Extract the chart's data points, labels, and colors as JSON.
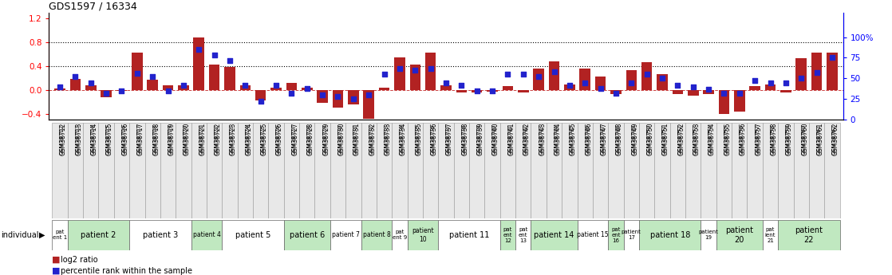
{
  "title": "GDS1597 / 16334",
  "samples": [
    "GSM38712",
    "GSM38713",
    "GSM38714",
    "GSM38715",
    "GSM38716",
    "GSM38717",
    "GSM38718",
    "GSM38719",
    "GSM38720",
    "GSM38721",
    "GSM38722",
    "GSM38723",
    "GSM38724",
    "GSM38725",
    "GSM38726",
    "GSM38727",
    "GSM38728",
    "GSM38729",
    "GSM38730",
    "GSM38731",
    "GSM38732",
    "GSM38733",
    "GSM38734",
    "GSM38735",
    "GSM38736",
    "GSM38737",
    "GSM38738",
    "GSM38739",
    "GSM38740",
    "GSM38741",
    "GSM38742",
    "GSM38743",
    "GSM38744",
    "GSM38745",
    "GSM38746",
    "GSM38747",
    "GSM38748",
    "GSM38749",
    "GSM38750",
    "GSM38751",
    "GSM38752",
    "GSM38753",
    "GSM38754",
    "GSM38755",
    "GSM38756",
    "GSM38757",
    "GSM38758",
    "GSM38759",
    "GSM38760",
    "GSM38761",
    "GSM38762"
  ],
  "log2_ratio": [
    0.02,
    0.18,
    0.08,
    -0.12,
    -0.02,
    0.62,
    0.17,
    0.07,
    0.08,
    0.88,
    0.42,
    0.38,
    0.07,
    -0.18,
    0.04,
    0.12,
    0.03,
    -0.22,
    -0.3,
    -0.25,
    -0.48,
    0.04,
    0.55,
    0.43,
    0.62,
    0.08,
    -0.04,
    -0.05,
    -0.03,
    0.06,
    -0.04,
    0.36,
    0.48,
    0.09,
    0.36,
    0.23,
    -0.07,
    0.33,
    0.46,
    0.26,
    -0.07,
    -0.1,
    -0.07,
    -0.4,
    -0.36,
    0.06,
    0.09,
    -0.04,
    0.53,
    0.63,
    0.63
  ],
  "percentile": [
    40,
    52,
    45,
    32,
    35,
    56,
    52,
    35,
    42,
    85,
    78,
    72,
    42,
    22,
    42,
    32,
    38,
    30,
    28,
    25,
    30,
    55,
    62,
    60,
    62,
    45,
    42,
    35,
    35,
    55,
    55,
    52,
    58,
    42,
    45,
    38,
    32,
    45,
    55,
    50,
    42,
    40,
    37,
    32,
    32,
    47,
    45,
    45,
    50,
    57,
    75
  ],
  "patients": [
    {
      "label": "pat\nent 1",
      "start": 0,
      "end": 1,
      "color": "white"
    },
    {
      "label": "patient 2",
      "start": 1,
      "end": 5,
      "color": "#c0e8c0"
    },
    {
      "label": "patient 3",
      "start": 5,
      "end": 9,
      "color": "white"
    },
    {
      "label": "patient 4",
      "start": 9,
      "end": 11,
      "color": "#c0e8c0"
    },
    {
      "label": "patient 5",
      "start": 11,
      "end": 15,
      "color": "white"
    },
    {
      "label": "patient 6",
      "start": 15,
      "end": 18,
      "color": "#c0e8c0"
    },
    {
      "label": "patient 7",
      "start": 18,
      "end": 20,
      "color": "white"
    },
    {
      "label": "patient 8",
      "start": 20,
      "end": 22,
      "color": "#c0e8c0"
    },
    {
      "label": "pat\nent 9",
      "start": 22,
      "end": 23,
      "color": "white"
    },
    {
      "label": "patient\n10",
      "start": 23,
      "end": 25,
      "color": "#c0e8c0"
    },
    {
      "label": "patient 11",
      "start": 25,
      "end": 29,
      "color": "white"
    },
    {
      "label": "pat\nent\n12",
      "start": 29,
      "end": 30,
      "color": "#c0e8c0"
    },
    {
      "label": "pat\nent\n13",
      "start": 30,
      "end": 31,
      "color": "white"
    },
    {
      "label": "patient 14",
      "start": 31,
      "end": 34,
      "color": "#c0e8c0"
    },
    {
      "label": "patient 15",
      "start": 34,
      "end": 36,
      "color": "white"
    },
    {
      "label": "pat\nent\n16",
      "start": 36,
      "end": 37,
      "color": "#c0e8c0"
    },
    {
      "label": "patient\n17",
      "start": 37,
      "end": 38,
      "color": "white"
    },
    {
      "label": "patient 18",
      "start": 38,
      "end": 42,
      "color": "#c0e8c0"
    },
    {
      "label": "patient\n19",
      "start": 42,
      "end": 43,
      "color": "white"
    },
    {
      "label": "patient\n20",
      "start": 43,
      "end": 46,
      "color": "#c0e8c0"
    },
    {
      "label": "pat\nient\n21",
      "start": 46,
      "end": 47,
      "color": "white"
    },
    {
      "label": "patient\n22",
      "start": 47,
      "end": 51,
      "color": "#c0e8c0"
    }
  ],
  "bar_color": "#b22222",
  "dot_color": "#2222cc",
  "ylim_left": [
    -0.5,
    1.3
  ],
  "ylim_right": [
    0,
    130
  ],
  "yticks_left": [
    -0.4,
    0.0,
    0.4,
    0.8,
    1.2
  ],
  "yticks_right": [
    0,
    25,
    50,
    75,
    100
  ],
  "bg_color": "#ffffff",
  "legend_red": "log2 ratio",
  "legend_blue": "percentile rank within the sample"
}
